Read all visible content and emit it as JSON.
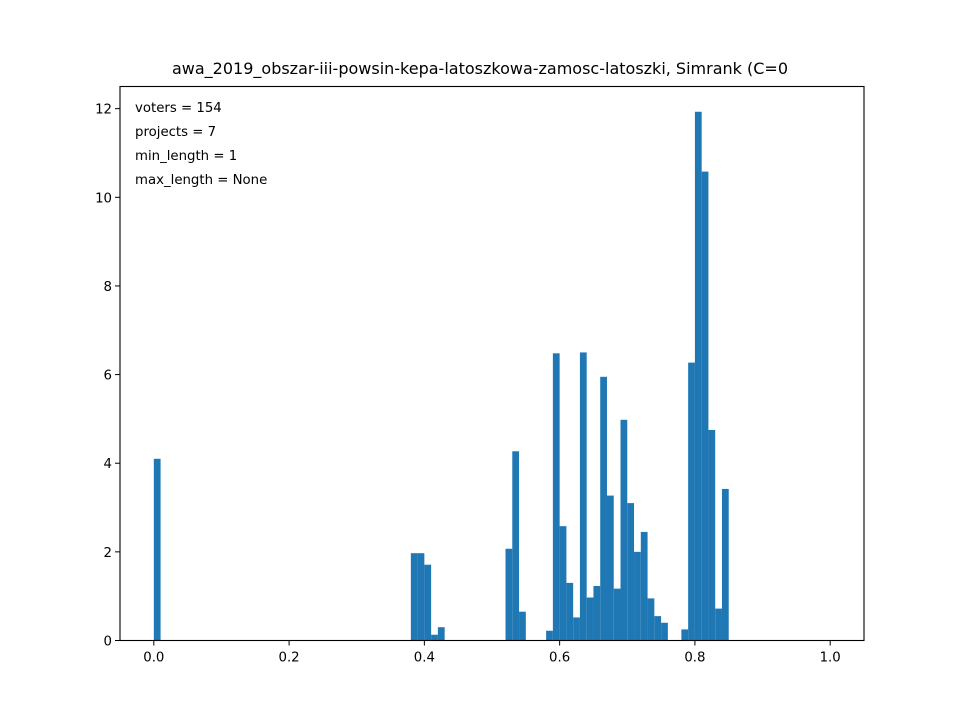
{
  "chart_data": {
    "type": "bar",
    "title": "awa_2019_obszar-iii-powsin-kepa-latoszkowa-zamosc-latoszki, Simrank (C=0",
    "xlabel": "",
    "ylabel": "",
    "xlim": [
      -0.05,
      1.05
    ],
    "ylim": [
      0,
      12.5
    ],
    "xticks": [
      "0.0",
      "0.2",
      "0.4",
      "0.6",
      "0.8",
      "1.0"
    ],
    "yticks": [
      "0",
      "2",
      "4",
      "6",
      "8",
      "10",
      "12"
    ],
    "bar_width": 0.01,
    "bar_color": "#1f77b4",
    "grid": false,
    "annotations": [
      "voters = 154",
      "projects = 7",
      "min_length = 1",
      "max_length = None"
    ],
    "bins": [
      {
        "x": 0.0,
        "value": 4.1
      },
      {
        "x": 0.38,
        "value": 1.97
      },
      {
        "x": 0.39,
        "value": 1.97
      },
      {
        "x": 0.4,
        "value": 1.71
      },
      {
        "x": 0.41,
        "value": 0.13
      },
      {
        "x": 0.42,
        "value": 0.3
      },
      {
        "x": 0.52,
        "value": 2.07
      },
      {
        "x": 0.53,
        "value": 4.27
      },
      {
        "x": 0.54,
        "value": 0.65
      },
      {
        "x": 0.58,
        "value": 0.22
      },
      {
        "x": 0.59,
        "value": 6.48
      },
      {
        "x": 0.6,
        "value": 2.58
      },
      {
        "x": 0.61,
        "value": 1.3
      },
      {
        "x": 0.62,
        "value": 0.52
      },
      {
        "x": 0.63,
        "value": 6.5
      },
      {
        "x": 0.64,
        "value": 0.97
      },
      {
        "x": 0.65,
        "value": 1.23
      },
      {
        "x": 0.66,
        "value": 5.95
      },
      {
        "x": 0.67,
        "value": 3.27
      },
      {
        "x": 0.68,
        "value": 1.17
      },
      {
        "x": 0.69,
        "value": 4.98
      },
      {
        "x": 0.7,
        "value": 3.1
      },
      {
        "x": 0.71,
        "value": 2.0
      },
      {
        "x": 0.72,
        "value": 2.45
      },
      {
        "x": 0.73,
        "value": 0.95
      },
      {
        "x": 0.74,
        "value": 0.55
      },
      {
        "x": 0.75,
        "value": 0.4
      },
      {
        "x": 0.78,
        "value": 0.25
      },
      {
        "x": 0.79,
        "value": 6.27
      },
      {
        "x": 0.8,
        "value": 11.93
      },
      {
        "x": 0.81,
        "value": 10.58
      },
      {
        "x": 0.82,
        "value": 4.75
      },
      {
        "x": 0.83,
        "value": 0.72
      },
      {
        "x": 0.84,
        "value": 3.42
      }
    ]
  }
}
